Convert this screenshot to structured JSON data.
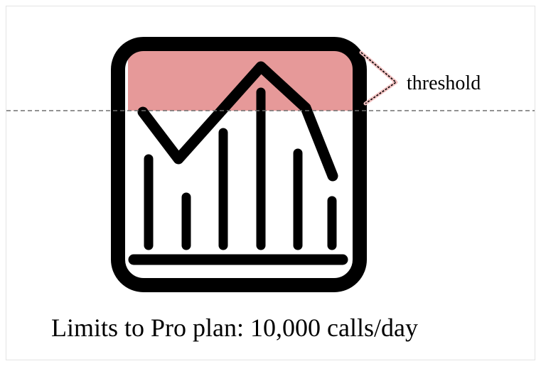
{
  "annotation": {
    "label": "threshold"
  },
  "caption": {
    "text": "Limits to Pro plan: 10,000 calls/day"
  },
  "icon": {
    "name": "chart-icon",
    "threshold_fill": "#e69999",
    "stroke_color": "#000000"
  },
  "colors": {
    "dashed_line": "#6e6e6e",
    "connector": "#c0392b"
  }
}
